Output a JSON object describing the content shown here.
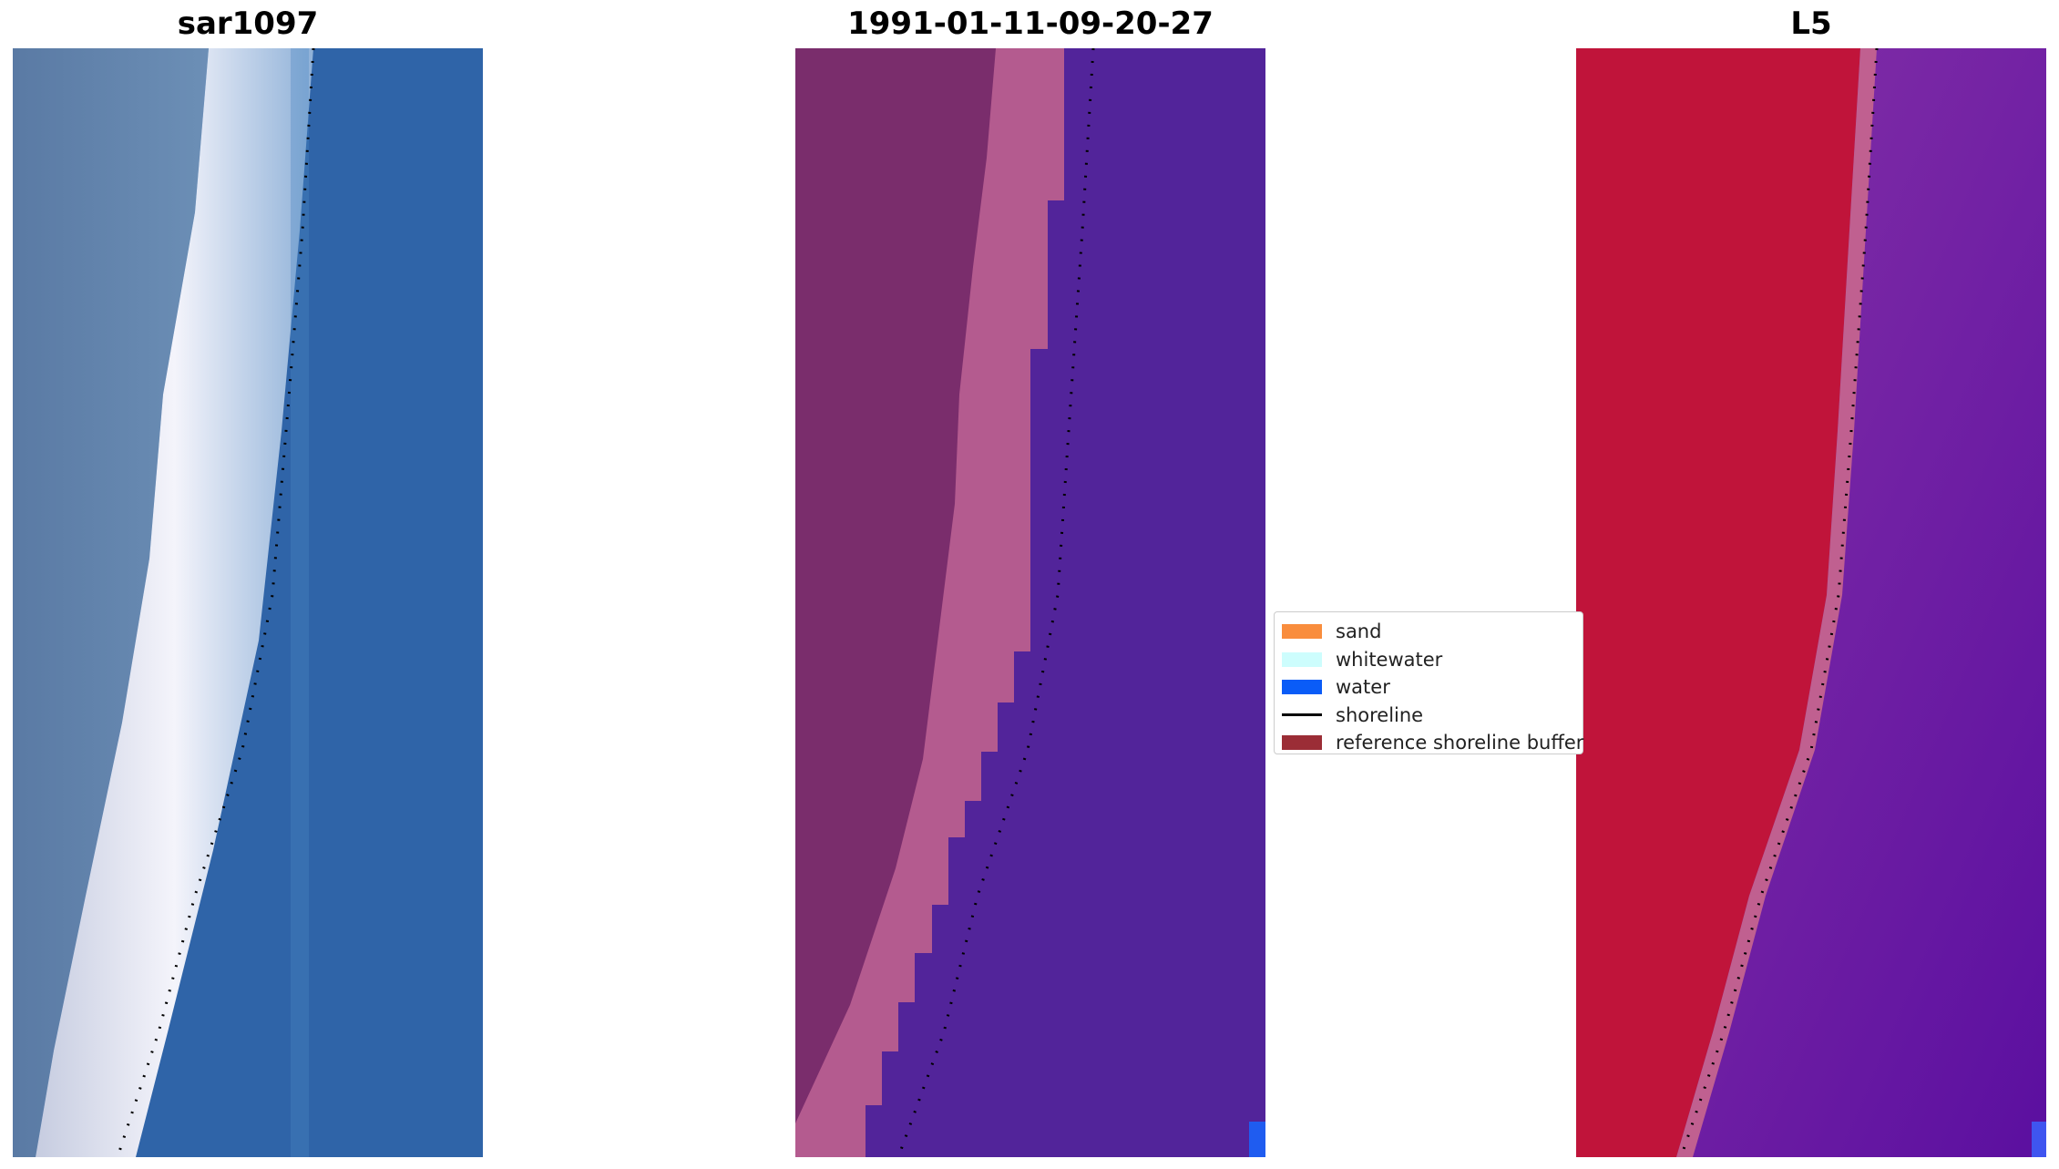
{
  "panels": [
    {
      "title": "sar1097",
      "icon": "satellite-rgb-image"
    },
    {
      "title": "1991-01-11-09-20-27",
      "icon": "classified-image"
    },
    {
      "title": "L5",
      "icon": "false-color-image"
    }
  ],
  "legend": {
    "items": [
      {
        "label": "sand",
        "color": "#f98d3d",
        "kind": "patch"
      },
      {
        "label": "whitewater",
        "color": "#cdfdfd",
        "kind": "patch"
      },
      {
        "label": "water",
        "color": "#0a5cf7",
        "kind": "patch"
      },
      {
        "label": "shoreline",
        "color": "#000000",
        "kind": "line"
      },
      {
        "label": "reference shoreline buffer",
        "color": "#9b2d36",
        "kind": "patch"
      }
    ]
  },
  "colors": {
    "panel1_land": "#5b7ea6",
    "panel1_surf": "#eef0f8",
    "panel1_sea": "#2f62a6",
    "panel2_land": "#7a2e6c",
    "panel2_beach": "#b45c90",
    "panel2_sea": "#52249a",
    "panel2_water_px": "#1f5cf0",
    "panel3_land": "#c0143a",
    "panel3_sea": "#7a2a9e",
    "panel3_water_px": "#3f55f0"
  }
}
